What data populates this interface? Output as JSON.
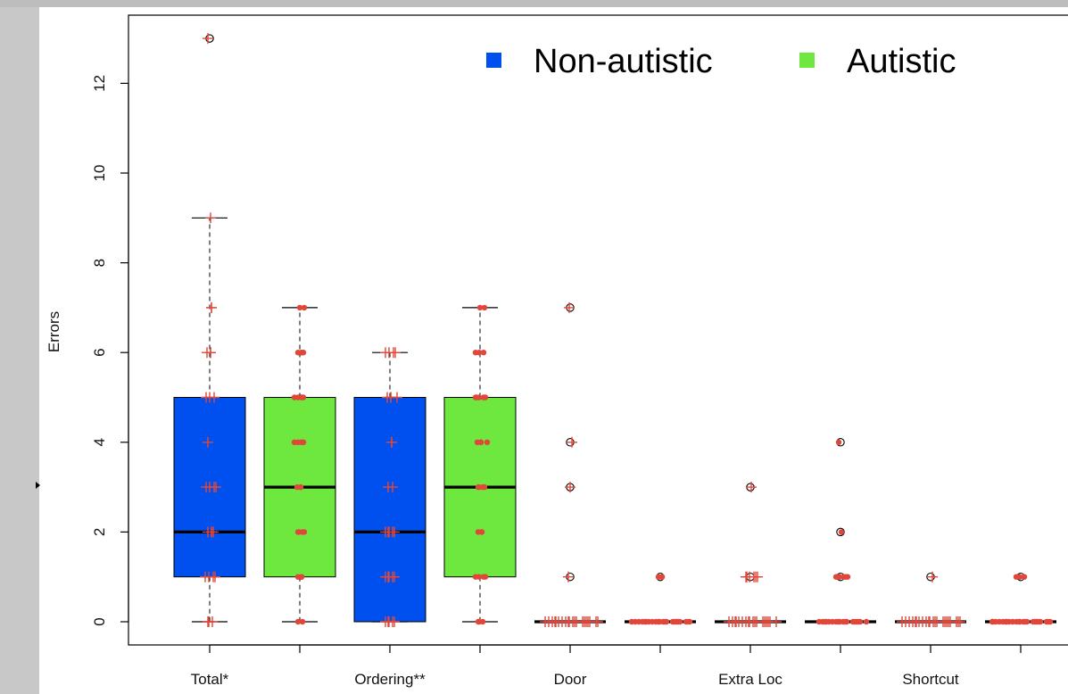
{
  "chart_data": {
    "type": "box",
    "ylabel": "Errors",
    "ylim": [
      0,
      13
    ],
    "yticks": [
      0,
      2,
      4,
      6,
      8,
      10,
      12
    ],
    "grid": false,
    "legend": {
      "placement": "top-right",
      "entries": [
        {
          "name": "Non-autistic",
          "color": "#0050f0"
        },
        {
          "name": "Autistic",
          "color": "#6ee83e"
        }
      ]
    },
    "categories": [
      "Total*",
      "Ordering**",
      "Door",
      "Extra Loc",
      "Shortcut"
    ],
    "colors": {
      "nonautistic": "#0050f0",
      "autistic": "#6ee83e",
      "points": "#e0473a"
    },
    "boxes": [
      {
        "category": "Total*",
        "group": "Non-autistic",
        "min": 0,
        "q1": 1,
        "median": 2,
        "q3": 5,
        "max": 9,
        "outliers": [
          13
        ],
        "points": [
          0,
          0,
          0,
          1,
          1,
          1,
          1,
          2,
          2,
          2,
          2,
          3,
          3,
          3,
          3,
          4,
          5,
          5,
          5,
          6,
          6,
          6,
          7,
          7,
          9,
          13
        ]
      },
      {
        "category": "Total*",
        "group": "Autistic",
        "min": 0,
        "q1": 1,
        "median": 3,
        "q3": 5,
        "max": 7,
        "outliers": [],
        "points": [
          0,
          0,
          1,
          1,
          1,
          2,
          2,
          2,
          2,
          3,
          3,
          3,
          4,
          4,
          4,
          4,
          4,
          5,
          5,
          5,
          5,
          5,
          6,
          6,
          6,
          6,
          7,
          7
        ]
      },
      {
        "category": "Ordering**",
        "group": "Non-autistic",
        "min": 0,
        "q1": 0,
        "median": 2,
        "q3": 5,
        "max": 6,
        "outliers": [],
        "points": [
          0,
          0,
          0,
          0,
          0,
          1,
          1,
          1,
          1,
          1,
          2,
          2,
          2,
          2,
          2,
          3,
          3,
          4,
          4,
          5,
          5,
          5,
          5,
          6,
          6,
          6,
          6
        ]
      },
      {
        "category": "Ordering**",
        "group": "Autistic",
        "min": 0,
        "q1": 1,
        "median": 3,
        "q3": 5,
        "max": 7,
        "outliers": [],
        "points": [
          0,
          0,
          0,
          1,
          1,
          1,
          1,
          2,
          2,
          2,
          3,
          3,
          3,
          3,
          4,
          4,
          4,
          4,
          5,
          5,
          5,
          5,
          5,
          6,
          6,
          6,
          7,
          7
        ]
      },
      {
        "category": "Door",
        "group": "Non-autistic",
        "min": 0,
        "q1": 0,
        "median": 0,
        "q3": 0,
        "max": 0,
        "outliers": [
          1,
          3,
          4,
          7
        ],
        "points": [
          0,
          0,
          0,
          0,
          0,
          0,
          0,
          0,
          0,
          0,
          0,
          0,
          0,
          0,
          0,
          0,
          0,
          0,
          0,
          0,
          1,
          3,
          4,
          7
        ]
      },
      {
        "category": "Door",
        "group": "Autistic",
        "min": 0,
        "q1": 0,
        "median": 0,
        "q3": 0,
        "max": 0,
        "outliers": [
          1
        ],
        "points": [
          0,
          0,
          0,
          0,
          0,
          0,
          0,
          0,
          0,
          0,
          0,
          0,
          0,
          0,
          0,
          0,
          0,
          0,
          0,
          0,
          0,
          0,
          1,
          1,
          1
        ]
      },
      {
        "category": "Extra Loc",
        "group": "Non-autistic",
        "min": 0,
        "q1": 0,
        "median": 0,
        "q3": 0,
        "max": 0,
        "outliers": [
          1,
          3
        ],
        "points": [
          0,
          0,
          0,
          0,
          0,
          0,
          0,
          0,
          0,
          0,
          0,
          0,
          0,
          0,
          0,
          0,
          0,
          0,
          1,
          1,
          1,
          1,
          1,
          1,
          3
        ]
      },
      {
        "category": "Extra Loc",
        "group": "Autistic",
        "min": 0,
        "q1": 0,
        "median": 0,
        "q3": 0,
        "max": 0,
        "outliers": [
          1,
          2,
          4
        ],
        "points": [
          0,
          0,
          0,
          0,
          0,
          0,
          0,
          0,
          0,
          0,
          0,
          0,
          0,
          0,
          0,
          0,
          0,
          0,
          1,
          1,
          1,
          1,
          1,
          1,
          2,
          4
        ]
      },
      {
        "category": "Shortcut",
        "group": "Non-autistic",
        "min": 0,
        "q1": 0,
        "median": 0,
        "q3": 0,
        "max": 0,
        "outliers": [
          1
        ],
        "points": [
          0,
          0,
          0,
          0,
          0,
          0,
          0,
          0,
          0,
          0,
          0,
          0,
          0,
          0,
          0,
          0,
          0,
          0,
          0,
          0,
          0,
          0,
          1
        ]
      },
      {
        "category": "Shortcut",
        "group": "Autistic",
        "min": 0,
        "q1": 0,
        "median": 0,
        "q3": 0,
        "max": 0,
        "outliers": [
          1
        ],
        "points": [
          0,
          0,
          0,
          0,
          0,
          0,
          0,
          0,
          0,
          0,
          0,
          0,
          0,
          0,
          0,
          0,
          0,
          0,
          0,
          0,
          0,
          0,
          0,
          1,
          1,
          1
        ]
      }
    ]
  }
}
